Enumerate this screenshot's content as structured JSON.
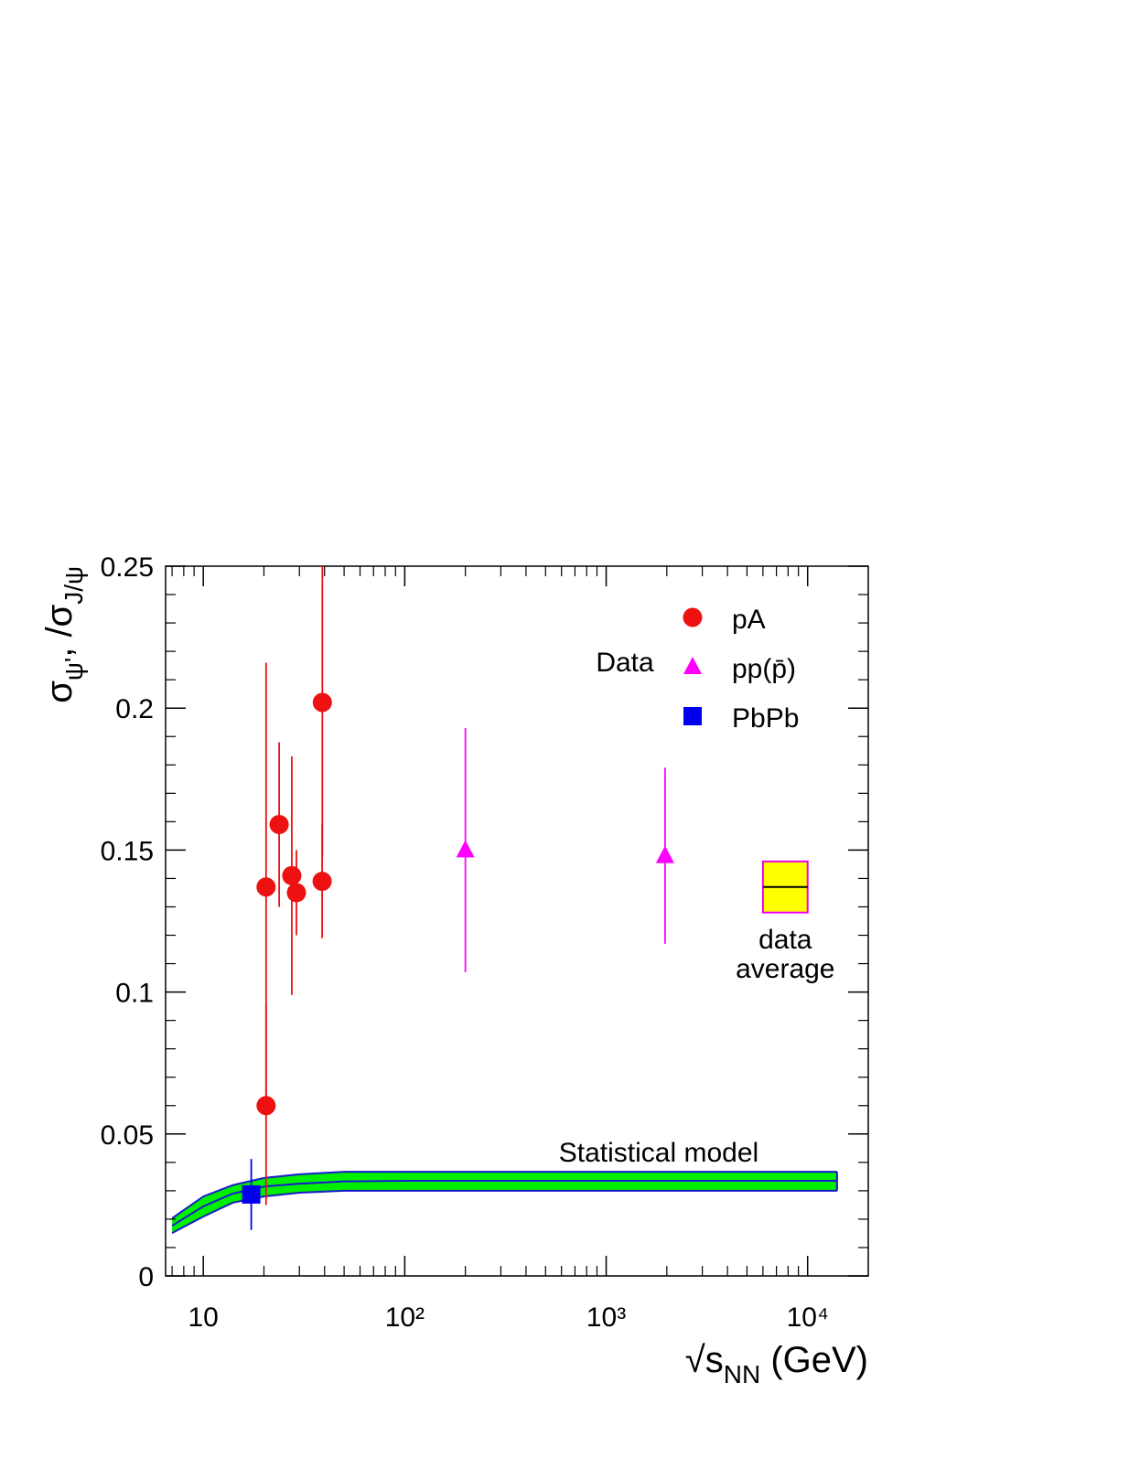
{
  "chart_data": {
    "type": "scatter",
    "xscale": "log",
    "xlabel": [
      "√s",
      "NN",
      " (GeV)"
    ],
    "ylabel": [
      "σ",
      "ψ'",
      ", /σ",
      "J/ψ"
    ],
    "xlim": [
      6.5,
      20000
    ],
    "ylim": [
      0,
      0.25
    ],
    "xticks": [
      10,
      {
        "value": 100,
        "label": "10²"
      },
      {
        "value": 1000,
        "label": "10³"
      },
      {
        "value": 10000,
        "label": "10⁴"
      }
    ],
    "xminorticks": [
      7,
      8,
      9,
      20,
      30,
      40,
      50,
      60,
      70,
      80,
      90,
      200,
      300,
      400,
      500,
      600,
      700,
      800,
      900,
      2000,
      3000,
      4000,
      5000,
      6000,
      7000,
      8000,
      9000
    ],
    "yticks": [
      0,
      0.05,
      0.1,
      0.15,
      0.2,
      0.25
    ],
    "yminorticks": [
      0.01,
      0.02,
      0.03,
      0.04,
      0.06,
      0.07,
      0.08,
      0.09,
      0.11,
      0.12,
      0.13,
      0.14,
      0.16,
      0.17,
      0.18,
      0.19,
      0.21,
      0.22,
      0.23,
      0.24
    ],
    "legend_title": "Data",
    "legend_position": "upper right",
    "series": [
      {
        "name": "pA",
        "color": "#ee1111",
        "marker": "circle",
        "x": [
          20.5,
          20.5,
          23.8,
          27.5,
          29.0,
          38.9,
          39.0
        ],
        "values": [
          0.137,
          0.06,
          0.159,
          0.141,
          0.135,
          0.139,
          0.202
        ],
        "errors": [
          0.079,
          0.035,
          0.029,
          0.042,
          0.015,
          0.02,
          0.054
        ]
      },
      {
        "name": "pp(p̄)",
        "color": "#ff00ff",
        "marker": "triangle",
        "x": [
          200,
          1960
        ],
        "values": [
          0.15,
          0.148
        ],
        "errors": [
          0.043,
          0.031
        ]
      },
      {
        "name": "PbPb",
        "color": "#0000ee",
        "marker": "square",
        "x": [
          17.3
        ],
        "values": [
          0.0287
        ],
        "errors": [
          0.0125
        ]
      }
    ],
    "band": {
      "label": "Statistical model",
      "fill": "#00ee00",
      "color": "#1a1acc",
      "x": [
        7,
        10,
        14,
        20,
        30,
        50,
        100,
        14000
      ],
      "values": [
        0.0177,
        0.0245,
        0.029,
        0.0315,
        0.0325,
        0.0333,
        0.0335,
        0.0335
      ],
      "lower": [
        0.0151,
        0.0209,
        0.0258,
        0.028,
        0.0293,
        0.03,
        0.03,
        0.03
      ],
      "upper": [
        0.0203,
        0.028,
        0.032,
        0.0345,
        0.0358,
        0.0367,
        0.0367,
        0.0367
      ]
    },
    "average": {
      "label": [
        "data",
        "average"
      ],
      "fill": "#ffff00",
      "color": "#ee00ee",
      "x": [
        6000,
        10000
      ],
      "value": 0.137,
      "error": 0.009
    }
  }
}
